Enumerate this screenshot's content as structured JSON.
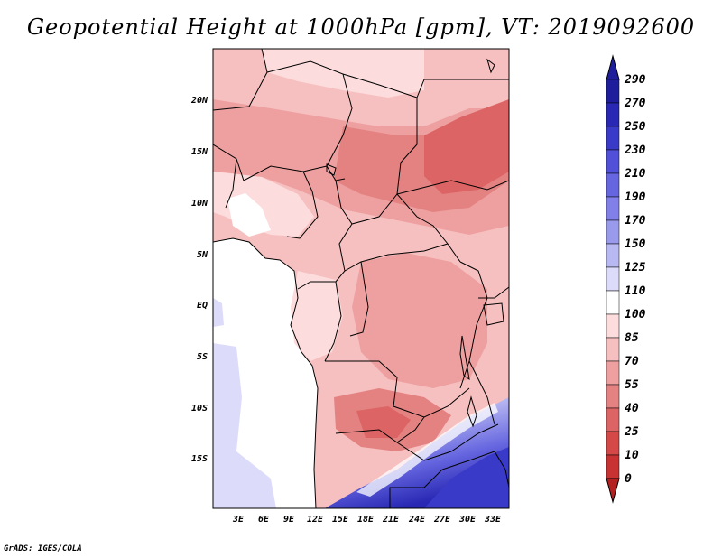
{
  "title": "Geopotential Height at 1000hPa [gpm], VT: 2019092600",
  "credit": "GrADS: IGES/COLA",
  "map": {
    "lat_ticks": [
      "20N",
      "15N",
      "10N",
      "5N",
      "EQ",
      "5S",
      "10S",
      "15S"
    ],
    "lon_ticks": [
      "3E",
      "6E",
      "9E",
      "12E",
      "15E",
      "18E",
      "21E",
      "24E",
      "27E",
      "30E",
      "33E"
    ]
  },
  "colorbar": {
    "levels": [
      "290",
      "270",
      "250",
      "230",
      "210",
      "190",
      "170",
      "150",
      "125",
      "110",
      "100",
      "85",
      "70",
      "55",
      "40",
      "25",
      "10",
      "0"
    ],
    "colors": [
      "#1e1e9c",
      "#2828b4",
      "#3a3ac8",
      "#5050d8",
      "#6666e0",
      "#8080e8",
      "#9a9aec",
      "#b8b8f2",
      "#dcdcfa",
      "#ffffff",
      "#fcdcdc",
      "#f7c0c0",
      "#eea0a0",
      "#e48282",
      "#dc6464",
      "#d44848",
      "#c83232",
      "#b42020"
    ]
  }
}
